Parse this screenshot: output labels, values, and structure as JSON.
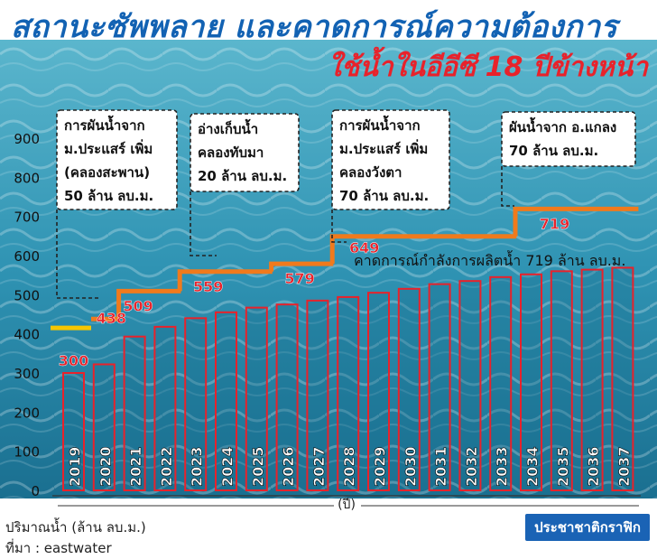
{
  "title": "สถานะซัพพลาย และคาดการณ์ความต้องการ",
  "chart_data": {
    "type": "bar",
    "subtitle": "ใช้น้ำในอีอีซี 18 ปีข้างหน้า",
    "categories": [
      "2019",
      "2020",
      "2021",
      "2022",
      "2023",
      "2024",
      "2025",
      "2026",
      "2027",
      "2028",
      "2029",
      "2030",
      "2031",
      "2032",
      "2033",
      "2034",
      "2035",
      "2036",
      "2037"
    ],
    "series": [
      {
        "values": [
          300,
          322,
          393,
          418,
          440,
          455,
          467,
          475,
          485,
          494,
          505,
          515,
          527,
          535,
          545,
          552,
          560,
          564,
          569
        ]
      }
    ],
    "supply_line": {
      "x": [
        "2019",
        "2020",
        "2021",
        "2022",
        "2023",
        "2024",
        "2025",
        "2026",
        "2027",
        "2028",
        "2029",
        "2030",
        "2031",
        "2032",
        "2033",
        "2034",
        "2035",
        "2036",
        "2037"
      ],
      "values": [
        415,
        438,
        509,
        509,
        559,
        559,
        559,
        579,
        579,
        649,
        649,
        649,
        649,
        649,
        649,
        719,
        719,
        719,
        719
      ],
      "initial_segment_color": "#f7c600",
      "color": "#f07a1c"
    },
    "step_labels": [
      {
        "x": "2019",
        "value": 300,
        "text": "300"
      },
      {
        "x": "2020",
        "value": 438,
        "text": "438"
      },
      {
        "x": "2021",
        "value": 509,
        "text": "509"
      },
      {
        "x": "2023",
        "value": 559,
        "text": "559"
      },
      {
        "x": "2026",
        "value": 579,
        "text": "579"
      },
      {
        "x": "2028",
        "value": 649,
        "text": "649"
      },
      {
        "x": "2034",
        "value": 719,
        "text": "719"
      }
    ],
    "annotations": [
      {
        "id": "a1",
        "lines": [
          "การผันน้ำจาก",
          "ม.ประแสร์ เพิ่ม",
          "(คลองสะพาน)",
          "50 ล้าน ลบ.ม."
        ]
      },
      {
        "id": "a2",
        "lines": [
          "อ่างเก็บน้ำ",
          "คลองทับมา",
          "20 ล้าน ลบ.ม."
        ]
      },
      {
        "id": "a3",
        "lines": [
          "การผันน้ำจาก",
          "ม.ประแสร์ เพิ่ม",
          "คลองวังตา",
          "70 ล้าน ลบ.ม."
        ]
      },
      {
        "id": "a4",
        "lines": [
          "ผันน้ำจาก อ.แกลง",
          "70 ล้าน ลบ.ม."
        ]
      }
    ],
    "capacity_note": "คาดการณ์กำลังการผลิตน้ำ 719 ล้าน ลบ.ม.",
    "xlabel": "(ปี)",
    "ylabel": "ปริมาณน้ำ (ล้าน ลบ.ม.)",
    "yticks": [
      0,
      100,
      200,
      300,
      400,
      500,
      600,
      700,
      800,
      900
    ],
    "ylim": [
      0,
      900
    ],
    "colors": {
      "bar_edge": "#e8222b",
      "bar_fill": "#1b6f8f",
      "label": "#e8222b",
      "background_water": "#3fa8c2"
    }
  },
  "source": "ที่มา : eastwater",
  "brand": "ประชาชาติกราฟิก"
}
